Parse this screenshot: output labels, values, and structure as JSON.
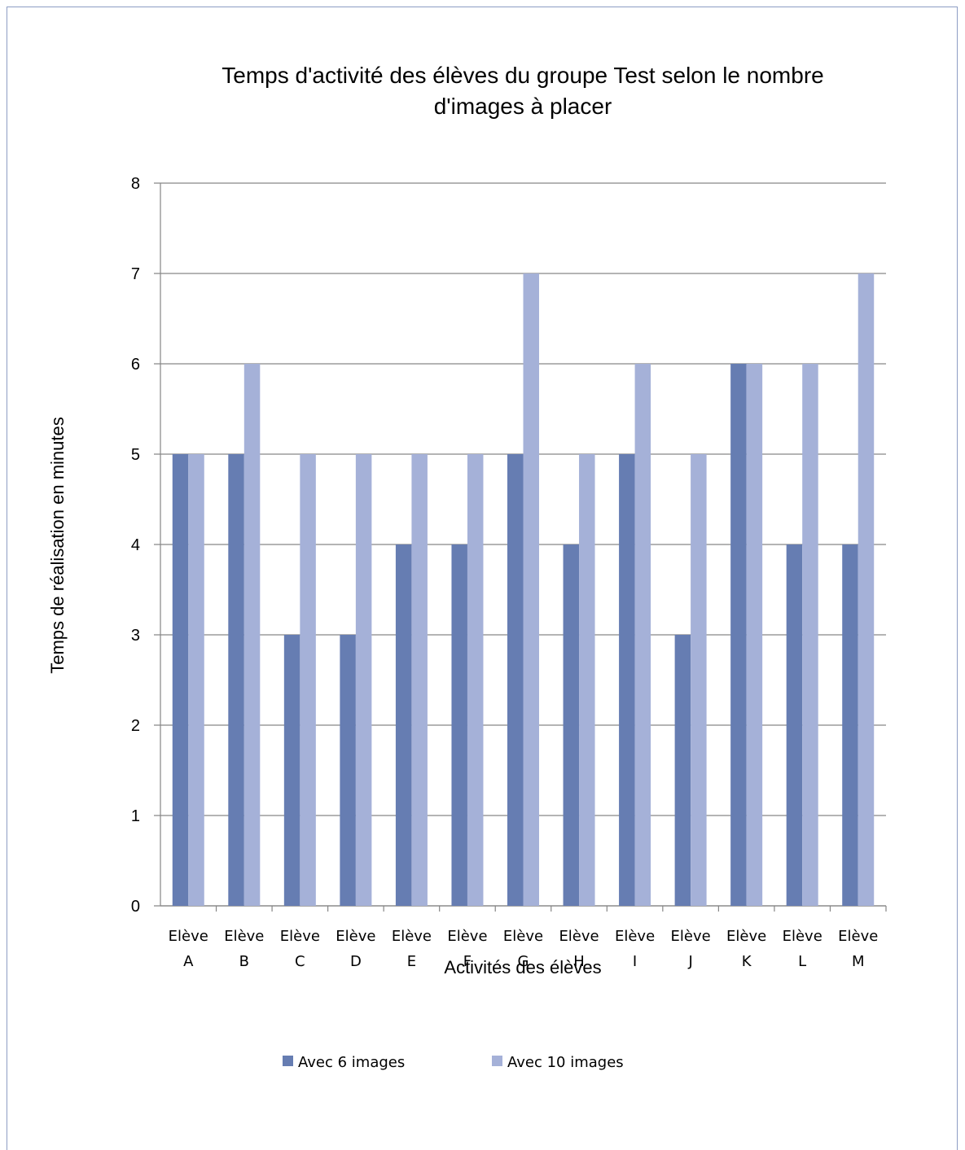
{
  "chart_data": {
    "type": "bar",
    "title_lines": [
      "Temps d'activité des élèves du groupe Test selon le nombre",
      "d'images à placer"
    ],
    "xlabel": "Activités des élèves",
    "ylabel": "Temps de réalisation en minutes",
    "ylim": [
      0,
      8
    ],
    "yticks": [
      "0",
      "1",
      "2",
      "3",
      "4",
      "5",
      "6",
      "7",
      "8"
    ],
    "grid": true,
    "legend_position": "bottom",
    "categories": [
      [
        "Elève",
        "A"
      ],
      [
        "Elève",
        "B"
      ],
      [
        "Elève",
        "C"
      ],
      [
        "Elève",
        "D"
      ],
      [
        "Elève",
        "E"
      ],
      [
        "Elève",
        "F"
      ],
      [
        "Elève",
        "G"
      ],
      [
        "Elève",
        "H"
      ],
      [
        "Elève",
        "I"
      ],
      [
        "Elève",
        "J"
      ],
      [
        "Elève",
        "K"
      ],
      [
        "Elève",
        "L"
      ],
      [
        "Elève",
        "M"
      ]
    ],
    "series": [
      {
        "name": "Avec 6 images",
        "color": "#667db2",
        "values": [
          5,
          5,
          3,
          3,
          4,
          4,
          5,
          4,
          5,
          3,
          6,
          4,
          4
        ]
      },
      {
        "name": "Avec 10 images",
        "color": "#a5b1d8",
        "values": [
          5,
          6,
          5,
          5,
          5,
          5,
          7,
          5,
          6,
          5,
          6,
          6,
          7
        ]
      }
    ]
  }
}
